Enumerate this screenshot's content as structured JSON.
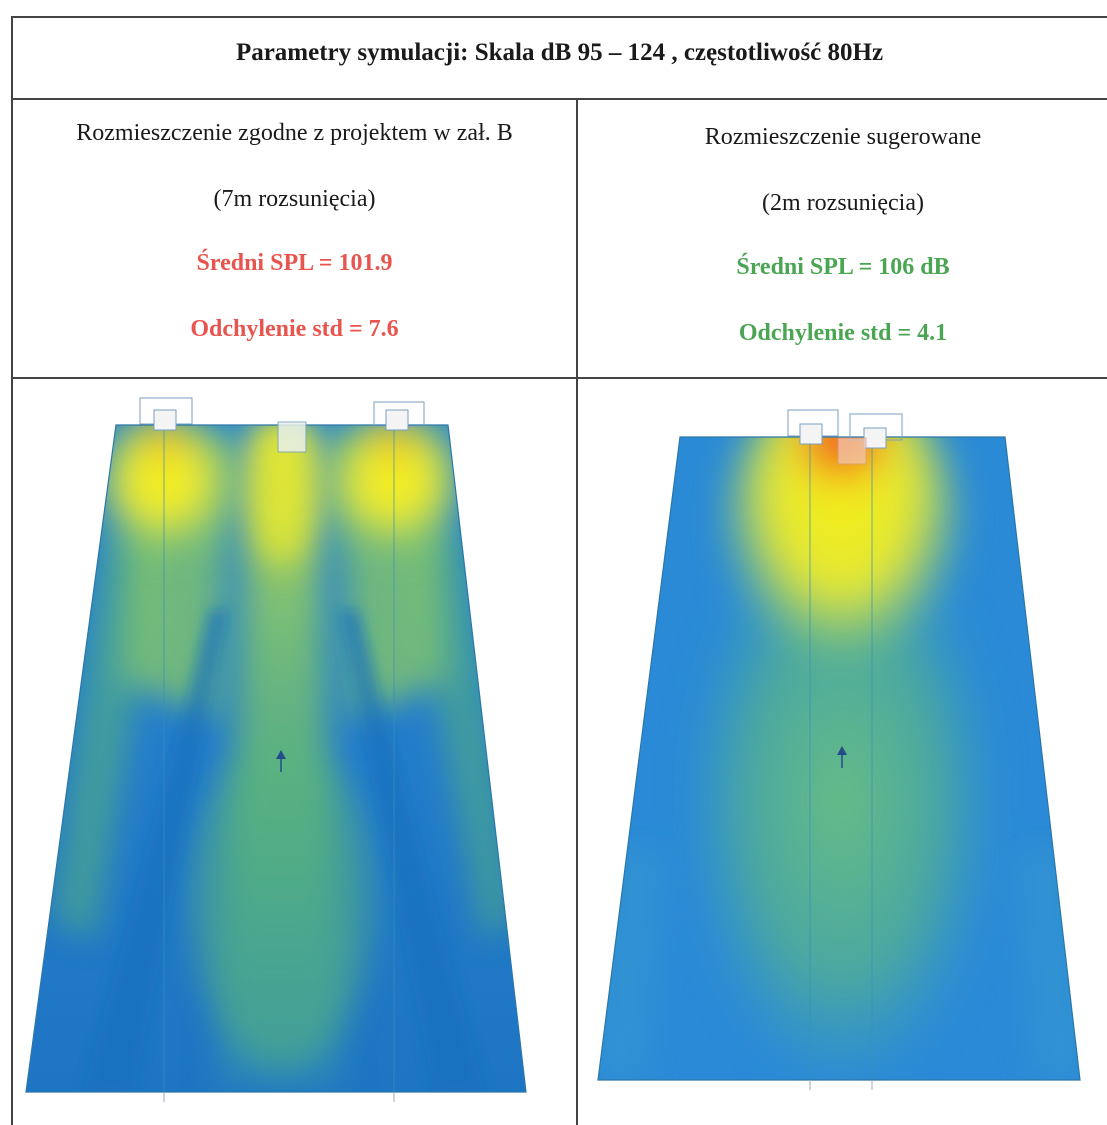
{
  "header": {
    "title": "Parametry symulacji: Skala dB 95 – 124 , częstotliwość 80Hz"
  },
  "left": {
    "line1": "Rozmieszczenie zgodne z projektem w zał. B",
    "line2": "(7m rozsunięcia)",
    "spl": "Średni SPL = 101.9",
    "std": "Odchylenie std = 7.6",
    "stat_color": "#e8554f"
  },
  "right": {
    "line1": "Rozmieszczenie sugerowane",
    "line2": "(2m rozsunięcia)",
    "spl": "Średni SPL = 106 dB",
    "std": "Odchylenie std = 4.1",
    "stat_color": "#4aa653"
  },
  "colors": {
    "heat_low": "#1f7fd0",
    "heat_mid": "#6cc07a",
    "heat_high": "#f5ee1a",
    "heat_peak": "#f0501e"
  },
  "icons": [
    "speaker-icon",
    "listener-arrow-icon"
  ]
}
